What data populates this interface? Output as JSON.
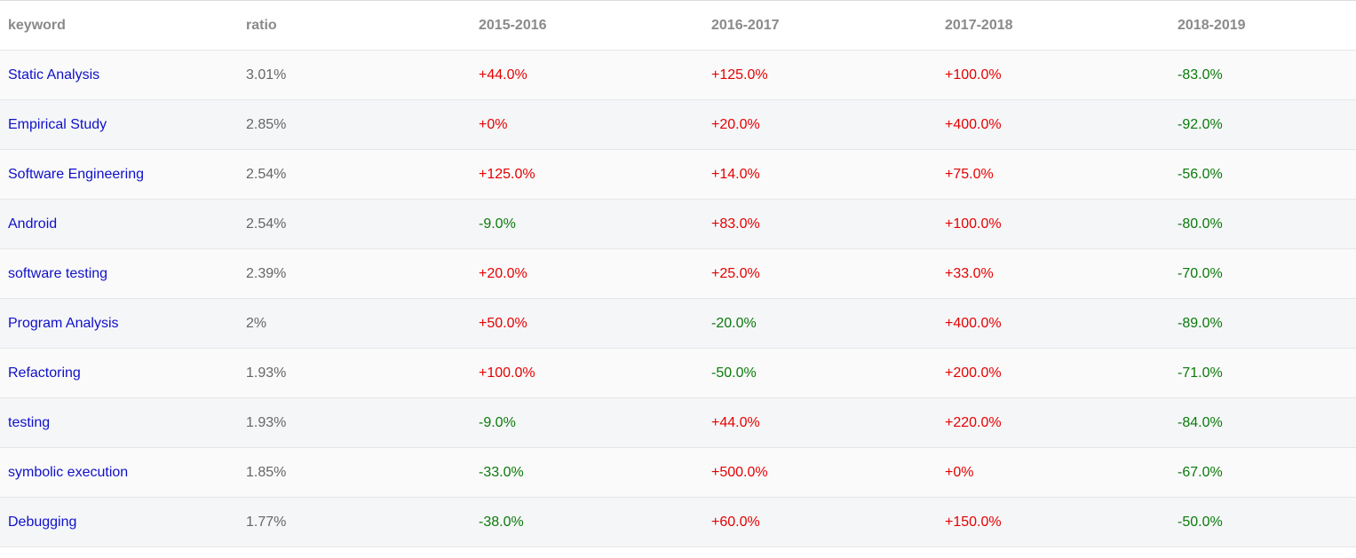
{
  "table": {
    "headers": [
      "keyword",
      "ratio",
      "2015-2016",
      "2016-2017",
      "2017-2018",
      "2018-2019"
    ],
    "rows": [
      {
        "keyword": "Static Analysis",
        "ratio": "3.01%",
        "changes": [
          "+44.0%",
          "+125.0%",
          "+100.0%",
          "-83.0%"
        ]
      },
      {
        "keyword": "Empirical Study",
        "ratio": "2.85%",
        "changes": [
          "+0%",
          "+20.0%",
          "+400.0%",
          "-92.0%"
        ]
      },
      {
        "keyword": "Software Engineering",
        "ratio": "2.54%",
        "changes": [
          "+125.0%",
          "+14.0%",
          "+75.0%",
          "-56.0%"
        ]
      },
      {
        "keyword": "Android",
        "ratio": "2.54%",
        "changes": [
          "-9.0%",
          "+83.0%",
          "+100.0%",
          "-80.0%"
        ]
      },
      {
        "keyword": "software testing",
        "ratio": "2.39%",
        "changes": [
          "+20.0%",
          "+25.0%",
          "+33.0%",
          "-70.0%"
        ]
      },
      {
        "keyword": "Program Analysis",
        "ratio": "2%",
        "changes": [
          "+50.0%",
          "-20.0%",
          "+400.0%",
          "-89.0%"
        ]
      },
      {
        "keyword": "Refactoring",
        "ratio": "1.93%",
        "changes": [
          "+100.0%",
          "-50.0%",
          "+200.0%",
          "-71.0%"
        ]
      },
      {
        "keyword": "testing",
        "ratio": "1.93%",
        "changes": [
          "-9.0%",
          "+44.0%",
          "+220.0%",
          "-84.0%"
        ]
      },
      {
        "keyword": "symbolic execution",
        "ratio": "1.85%",
        "changes": [
          "-33.0%",
          "+500.0%",
          "+0%",
          "-67.0%"
        ]
      },
      {
        "keyword": "Debugging",
        "ratio": "1.77%",
        "changes": [
          "-38.0%",
          "+60.0%",
          "+150.0%",
          "-50.0%"
        ]
      }
    ]
  },
  "colors": {
    "keyword_link": "#1010c8",
    "positive": "#e60000",
    "negative": "#0a7a0a",
    "header_text": "#8a8a8a",
    "ratio_text": "#666666"
  }
}
